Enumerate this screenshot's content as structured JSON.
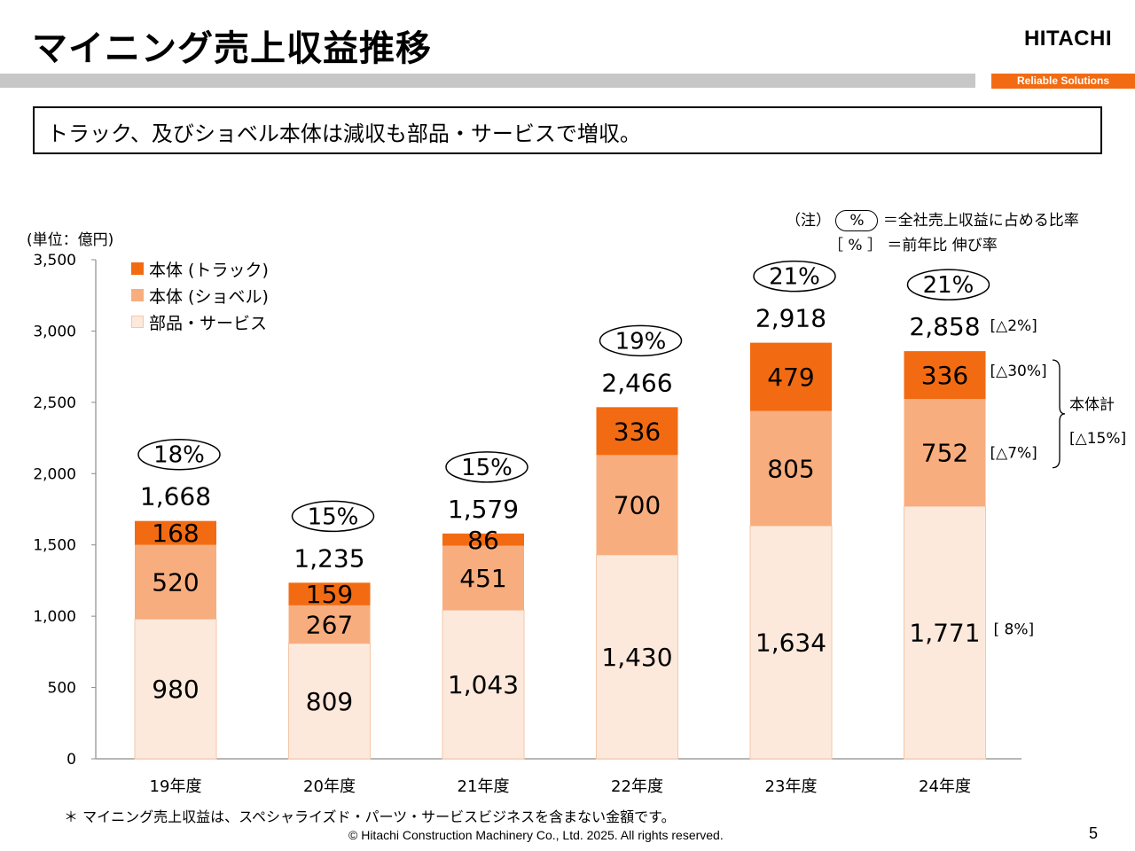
{
  "header": {
    "title": "マイニング売上収益推移",
    "logo": "HITACHI",
    "tagline": "Reliable Solutions"
  },
  "summary": "トラック、及びショベル本体は減収も部品・サービスで増収。",
  "notes": {
    "prefix": "（注）",
    "oval_symbol": "%",
    "oval_meaning": "＝全社売上収益に占める比率",
    "bracket_symbol": "［ % ］",
    "bracket_meaning": "＝前年比  伸び率"
  },
  "unit_label": "(単位：億円)",
  "legend": [
    {
      "label": "本体 (トラック)",
      "color": "#f26b12"
    },
    {
      "label": "本体 (ショベル)",
      "color": "#f8ad7e"
    },
    {
      "label": "部品・サービス",
      "color": "#fde9dc"
    }
  ],
  "chart_data": {
    "type": "bar",
    "stacked": true,
    "categories": [
      "19年度",
      "20年度",
      "21年度",
      "22年度",
      "23年度",
      "24年度"
    ],
    "series": [
      {
        "name": "部品・サービス",
        "color": "#fde9dc",
        "values": [
          980,
          809,
          1043,
          1430,
          1634,
          1771
        ]
      },
      {
        "name": "本体 (ショベル)",
        "color": "#f8ad7e",
        "values": [
          520,
          267,
          451,
          700,
          805,
          752
        ]
      },
      {
        "name": "本体 (トラック)",
        "color": "#f26b12",
        "values": [
          168,
          159,
          86,
          336,
          479,
          336
        ]
      }
    ],
    "value_labels": [
      [
        "980",
        "809",
        "1,043",
        "1,430",
        "1,634",
        "1,771"
      ],
      [
        "520",
        "267",
        "451",
        "700",
        "805",
        "752"
      ],
      [
        "168",
        "159",
        "86",
        "336",
        "479",
        "336"
      ]
    ],
    "totals": [
      "1,668",
      "1,235",
      "1,579",
      "2,466",
      "2,918",
      "2,858"
    ],
    "share_pct": [
      "18%",
      "15%",
      "15%",
      "19%",
      "21%",
      "21%"
    ],
    "ylim": [
      0,
      3500
    ],
    "yticks": [
      0,
      500,
      1000,
      1500,
      2000,
      2500,
      3000,
      3500
    ],
    "ytick_labels": [
      "0",
      "500",
      "1,000",
      "1,500",
      "2,000",
      "2,500",
      "3,000",
      "3,500"
    ],
    "grid": false,
    "legend_position": "top-left",
    "growth_annotations": {
      "total": "[△2%]",
      "truck": "[△30%]",
      "excavator": "[△7%]",
      "parts": "[ 8%]",
      "body_total_label": "本体計",
      "body_total": "[△15%]"
    }
  },
  "footnote": "＊ マイニング売上収益は、スペシャライズド・パーツ・サービスビジネスを含まない金額です。",
  "copyright": "© Hitachi Construction Machinery Co., Ltd. 2025. All rights reserved.",
  "page_number": "5"
}
